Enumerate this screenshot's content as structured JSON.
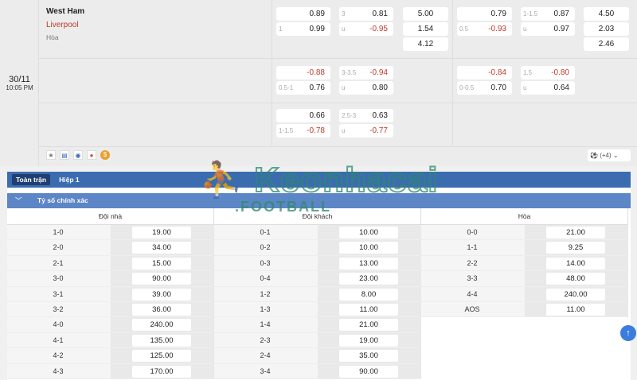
{
  "match": {
    "date": "30/11",
    "time": "10:05 PM",
    "home": "West Ham",
    "away": "Liverpool",
    "draw": "Hòa"
  },
  "odds": {
    "r1": {
      "hdp_top": "0.89",
      "hdp_line": "1",
      "hdp_bot": "0.99",
      "ou_line": "3",
      "ou_top": "0.81",
      "ou_u": "u",
      "ou_bot": "-0.95",
      "x1": "5.00",
      "x2": "1.54",
      "x3": "4.12",
      "h1_top": "0.79",
      "h1_line": "0.5",
      "h1_bot": "-0.93",
      "h1ou_line": "1-1.5",
      "h1ou_top": "0.87",
      "h1ou_u": "u",
      "h1ou_bot": "0.97",
      "h1x1": "4.50",
      "h1x2": "2.03",
      "h1x3": "2.46"
    },
    "r2": {
      "hdp_top": "-0.88",
      "hdp_line": "0.5-1",
      "hdp_bot": "0.76",
      "ou_line": "3-3.5",
      "ou_top": "-0.94",
      "ou_u": "u",
      "ou_bot": "0.80",
      "h1_top": "-0.84",
      "h1_line": "0-0.5",
      "h1_bot": "0.70",
      "h1ou_line": "1.5",
      "h1ou_top": "-0.80",
      "h1ou_u": "u",
      "h1ou_bot": "0.64"
    },
    "r3": {
      "hdp_top": "0.66",
      "hdp_line": "1-1.5",
      "hdp_bot": "-0.78",
      "ou_line": "2.5-3",
      "ou_top": "0.63",
      "ou_u": "u",
      "ou_bot": "-0.77"
    }
  },
  "more": "(+4)",
  "tabs": [
    "Toàn trận",
    "Hiệp 1"
  ],
  "section": "Tỷ số chính xác",
  "columns": [
    {
      "header": "Đội nhà",
      "rows": [
        [
          "1-0",
          "19.00"
        ],
        [
          "2-0",
          "34.00"
        ],
        [
          "2-1",
          "15.00"
        ],
        [
          "3-0",
          "90.00"
        ],
        [
          "3-1",
          "39.00"
        ],
        [
          "3-2",
          "36.00"
        ],
        [
          "4-0",
          "240.00"
        ],
        [
          "4-1",
          "135.00"
        ],
        [
          "4-2",
          "125.00"
        ],
        [
          "4-3",
          "170.00"
        ]
      ]
    },
    {
      "header": "Đội khách",
      "rows": [
        [
          "0-1",
          "10.00"
        ],
        [
          "0-2",
          "10.00"
        ],
        [
          "0-3",
          "13.00"
        ],
        [
          "0-4",
          "23.00"
        ],
        [
          "1-2",
          "8.00"
        ],
        [
          "1-3",
          "11.00"
        ],
        [
          "1-4",
          "21.00"
        ],
        [
          "2-3",
          "19.00"
        ],
        [
          "2-4",
          "35.00"
        ],
        [
          "3-4",
          "90.00"
        ]
      ]
    },
    {
      "header": "Hòa",
      "rows": [
        [
          "0-0",
          "21.00"
        ],
        [
          "1-1",
          "9.25"
        ],
        [
          "2-2",
          "14.00"
        ],
        [
          "3-3",
          "48.00"
        ],
        [
          "4-4",
          "240.00"
        ],
        [
          "AOS",
          "11.00"
        ]
      ]
    }
  ],
  "watermark": {
    "line1": "Keonhacai",
    "line2": ".FOOTBALL"
  },
  "colors": {
    "tab_bar": "#3b6cb0",
    "section_bar": "#5c86c6",
    "negative": "#c0392b",
    "away_team": "#c0392b"
  }
}
